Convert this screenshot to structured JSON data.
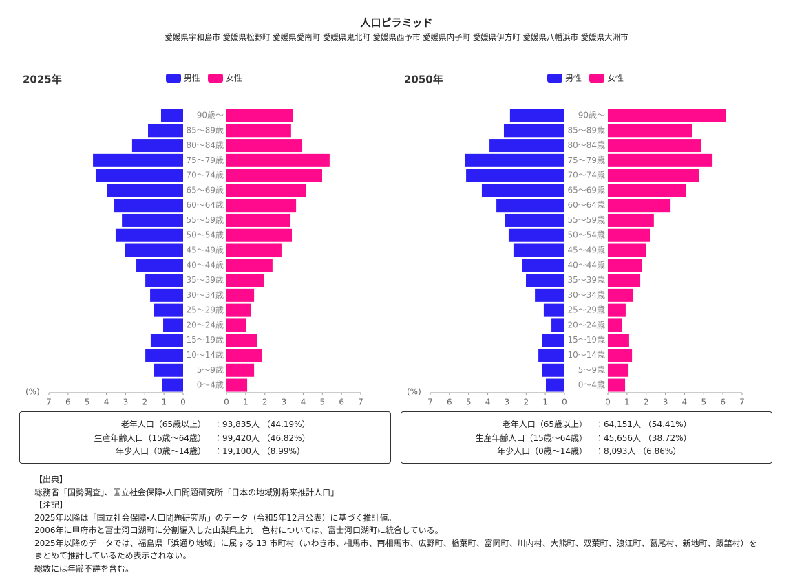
{
  "header": {
    "title": "人口ピラミッド",
    "subtitle": "愛媛県宇和島市 愛媛県松野町 愛媛県愛南町 愛媛県鬼北町 愛媛県西予市 愛媛県内子町 愛媛県伊方町 愛媛県八幡浜市 愛媛県大洲市"
  },
  "chart_data": [
    {
      "type": "pyramid",
      "title": "2025年",
      "x_label": "(%)",
      "categories": [
        "90歳〜",
        "85〜89歳",
        "80〜84歳",
        "75〜79歳",
        "70〜74歳",
        "65〜69歳",
        "60〜64歳",
        "55〜59歳",
        "50〜54歳",
        "45〜49歳",
        "40〜44歳",
        "35〜39歳",
        "30〜34歳",
        "25〜29歳",
        "20〜24歳",
        "15〜19歳",
        "10〜14歳",
        "5〜9歳",
        "0〜4歳"
      ],
      "series": [
        {
          "name": "男性",
          "color": "#2b1ff5",
          "values": [
            1.15,
            1.83,
            2.66,
            4.7,
            4.56,
            3.95,
            3.59,
            3.19,
            3.52,
            3.05,
            2.44,
            1.97,
            1.72,
            1.54,
            1.04,
            1.69,
            1.97,
            1.51,
            1.11
          ]
        },
        {
          "name": "女性",
          "color": "#ff0a8c",
          "values": [
            3.48,
            3.37,
            3.95,
            5.38,
            4.99,
            4.16,
            3.63,
            3.34,
            3.41,
            2.87,
            2.4,
            1.94,
            1.44,
            1.29,
            1.01,
            1.58,
            1.83,
            1.44,
            1.08
          ]
        }
      ],
      "xlim": [
        0,
        7
      ],
      "xticks": [
        0,
        1,
        2,
        3,
        4,
        5,
        6,
        7
      ],
      "summary": [
        {
          "label": "老年人口（65歳以上）",
          "value": "：93,835人 （44.19%）"
        },
        {
          "label": "生産年齢人口（15歳〜64歳）",
          "value": "：99,420人 （46.82%）"
        },
        {
          "label": "年少人口（0歳〜14歳）",
          "value": "：19,100人 （8.99%）"
        }
      ]
    },
    {
      "type": "pyramid",
      "title": "2050年",
      "x_label": "(%)",
      "categories": [
        "90歳〜",
        "85〜89歳",
        "80〜84歳",
        "75〜79歳",
        "70〜74歳",
        "65〜69歳",
        "60〜64歳",
        "55〜59歳",
        "50〜54歳",
        "45〜49歳",
        "40〜44歳",
        "35〜39歳",
        "30〜34歳",
        "25〜29歳",
        "20〜24歳",
        "15〜19歳",
        "10〜14歳",
        "5〜9歳",
        "0〜4歳"
      ],
      "series": [
        {
          "name": "男性",
          "color": "#2b1ff5",
          "values": [
            2.84,
            3.16,
            3.91,
            5.2,
            5.13,
            4.31,
            3.55,
            3.09,
            2.91,
            2.66,
            2.19,
            2.01,
            1.54,
            1.08,
            0.68,
            1.18,
            1.36,
            1.18,
            0.97
          ]
        },
        {
          "name": "女性",
          "color": "#ff0a8c",
          "values": [
            6.14,
            4.38,
            4.88,
            5.46,
            4.77,
            4.06,
            3.27,
            2.4,
            2.19,
            2.01,
            1.79,
            1.69,
            1.33,
            0.93,
            0.72,
            1.11,
            1.26,
            1.08,
            0.9
          ]
        }
      ],
      "xlim": [
        0,
        7
      ],
      "xticks": [
        0,
        1,
        2,
        3,
        4,
        5,
        6,
        7
      ],
      "summary": [
        {
          "label": "老年人口（65歳以上）",
          "value": "：64,151人 （54.41%）"
        },
        {
          "label": "生産年齢人口（15歳〜64歳）",
          "value": "：45,656人 （38.72%）"
        },
        {
          "label": "年少人口（0歳〜14歳）",
          "value": "：8,093人 （6.86%）"
        }
      ]
    }
  ],
  "notes": [
    "【出典】",
    "総務省「国勢調査」、国立社会保障・人口問題研究所「日本の地域別将来推計人口」",
    "【注記】",
    "2025年以降は「国立社会保障・人口問題研究所」のデータ（令和5年12月公表）に基づく推計値。",
    "2006年に甲府市と富士河口湖町に分割編入した山梨県上九一色村については、富士河口湖町に統合している。",
    "2025年以降のデータでは、福島県「浜通り地域」に属する 13 市町村（いわき市、相馬市、南相馬市、広野町、楢葉町、富岡町、川内村、大熊町、双葉町、浪江町、葛尾村、新地町、飯舘村）をまとめて推計しているため表示されない。",
    "総数には年齢不詳を含む。"
  ]
}
